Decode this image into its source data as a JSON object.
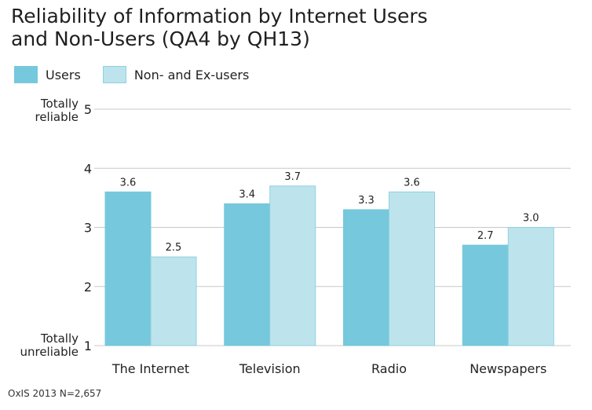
{
  "title_lines": [
    "Reliability of Information by Internet Users",
    "and Non-Users  (QA4 by QH13)"
  ],
  "source": "OxIS 2013 N=2,657",
  "colors": {
    "users": "#76c8dc",
    "non_users": "#bde4ec",
    "users_border": "#76c8dc",
    "non_users_border": "#8fd0e0",
    "grid": "#c8c8c8"
  },
  "chart_data": {
    "type": "bar",
    "categories": [
      "The Internet",
      "Television",
      "Radio",
      "Newspapers"
    ],
    "series": [
      {
        "name": "Users",
        "values": [
          3.6,
          3.4,
          3.3,
          2.7
        ],
        "labels": [
          "3.6",
          "3.4",
          "3.3",
          "2.7"
        ]
      },
      {
        "name": "Non- and Ex-users",
        "values": [
          2.5,
          3.7,
          3.6,
          3.0
        ],
        "labels": [
          "2.5",
          "3.7",
          "3.6",
          "3.0"
        ]
      }
    ],
    "ylim": [
      1,
      5
    ],
    "yticks": [
      "1",
      "2",
      "3",
      "4",
      "5"
    ],
    "ytick_top_label": [
      "Totally",
      "reliable"
    ],
    "ytick_bottom_label": [
      "Totally",
      "unreliable"
    ],
    "grid": true,
    "legend_position": "top-left"
  }
}
